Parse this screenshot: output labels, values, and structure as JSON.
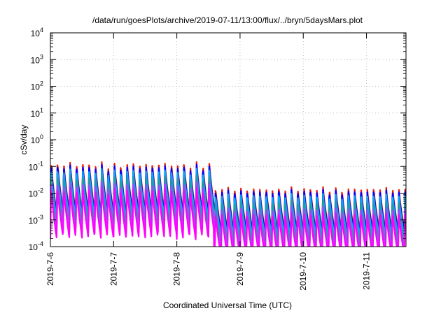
{
  "chart_data": {
    "type": "line",
    "title": "/data/run/goesPlots/archive/2019-07-11/13:00/flux/../bryn/5daysMars.plot",
    "xlabel": "Coordinated Universal Time (UTC)",
    "ylabel": "cSv/day",
    "yscale": "log",
    "ylim": [
      0.0001,
      10000
    ],
    "xlim": [
      "2019-07-06",
      "2019-07-11 15:00"
    ],
    "x_ticks": [
      "2019-7-6",
      "2019-7-7",
      "2019-7-8",
      "2019-7-9",
      "2019-7-10",
      "2019-7-11"
    ],
    "y_ticks": [
      {
        "value": 0.0001,
        "base": "10",
        "exp": "-4"
      },
      {
        "value": 0.001,
        "base": "10",
        "exp": "-3"
      },
      {
        "value": 0.01,
        "base": "10",
        "exp": "-2"
      },
      {
        "value": 0.1,
        "base": "10",
        "exp": "-1"
      },
      {
        "value": 1,
        "base": "10",
        "exp": "0"
      },
      {
        "value": 10,
        "base": "10",
        "exp": "1"
      },
      {
        "value": 100,
        "base": "10",
        "exp": "2"
      },
      {
        "value": 1000,
        "base": "10",
        "exp": "3"
      },
      {
        "value": 10000,
        "base": "10",
        "exp": "4"
      }
    ],
    "grid": true,
    "legend": "none",
    "pattern": {
      "period_hours": 2.4,
      "regimes": [
        {
          "from": "2019-07-06",
          "to": "2019-07-08 14:00",
          "trough": 0.0015,
          "peak": 0.11
        },
        {
          "from": "2019-07-08 14:00",
          "to": "2019-07-11 15:00",
          "trough": 0.0003,
          "peak": 0.013
        }
      ]
    },
    "series": [
      {
        "color": "#e51e10",
        "level": 1.25,
        "spread": 0.14
      },
      {
        "color": "#0000ff",
        "level": 1.0,
        "spread": 0.1
      },
      {
        "color": "#00aaff",
        "level": 0.7,
        "spread": 0.08
      },
      {
        "color": "#20a0a0",
        "level": 0.4,
        "spread": 0.06
      },
      {
        "color": "#aa44ff",
        "level": 0.22,
        "spread": 0.06
      },
      {
        "color": "#ff00ff",
        "level": 0.14,
        "spread": 0.18
      }
    ]
  }
}
